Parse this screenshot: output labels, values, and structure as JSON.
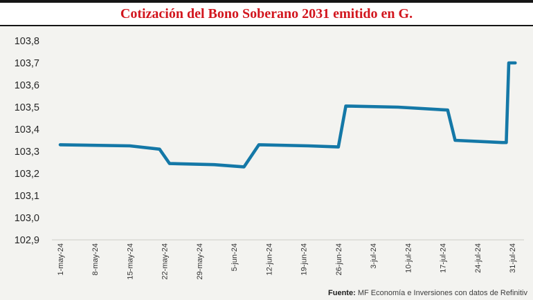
{
  "header": {
    "title": "Cotización del Bono Soberano 2031 emitido en G."
  },
  "footer": {
    "source_label": "Fuente:",
    "source_text": " MF Economía e Inversiones con datos de Refinitiv"
  },
  "chart_data": {
    "type": "line",
    "title": "Cotización del Bono Soberano 2031 emitido en G.",
    "xlabel": "",
    "ylabel": "",
    "grid": false,
    "legend": "none",
    "background_color": "#f3f3f0",
    "line_color": "#1478a7",
    "axis_line_color": "#d9d9d6",
    "ylim": [
      102.9,
      103.8
    ],
    "y_ticks": [
      103.8,
      103.7,
      103.6,
      103.5,
      103.4,
      103.3,
      103.2,
      103.1,
      103.0,
      102.9
    ],
    "y_tick_labels": [
      "103,8",
      "103,7",
      "103,6",
      "103,5",
      "103,4",
      "103,3",
      "103,2",
      "103,1",
      "103,0",
      "102,9"
    ],
    "x_tick_labels": [
      "1-may-24",
      "8-may-24",
      "15-may-24",
      "22-may-24",
      "29-may-24",
      "5-jun-24",
      "12-jun-24",
      "19-jun-24",
      "26-jun-24",
      "3-jul-24",
      "10-jul-24",
      "17-jul-24",
      "24-jul-24",
      "31-jul-24"
    ],
    "x_tick_days": [
      0,
      7,
      14,
      21,
      28,
      35,
      42,
      49,
      56,
      63,
      70,
      77,
      84,
      91
    ],
    "series": [
      {
        "name": "Cotización del Bono Soberano 2031",
        "points_day_value": [
          [
            0,
            103.33
          ],
          [
            14,
            103.325
          ],
          [
            20,
            103.31
          ],
          [
            22,
            103.245
          ],
          [
            31,
            103.24
          ],
          [
            37,
            103.23
          ],
          [
            40,
            103.33
          ],
          [
            50,
            103.325
          ],
          [
            56,
            103.32
          ],
          [
            57.5,
            103.505
          ],
          [
            68,
            103.5
          ],
          [
            78,
            103.487
          ],
          [
            79.5,
            103.35
          ],
          [
            89,
            103.34
          ],
          [
            89.8,
            103.34
          ],
          [
            90.3,
            103.7
          ],
          [
            91.6,
            103.7
          ]
        ]
      }
    ]
  }
}
